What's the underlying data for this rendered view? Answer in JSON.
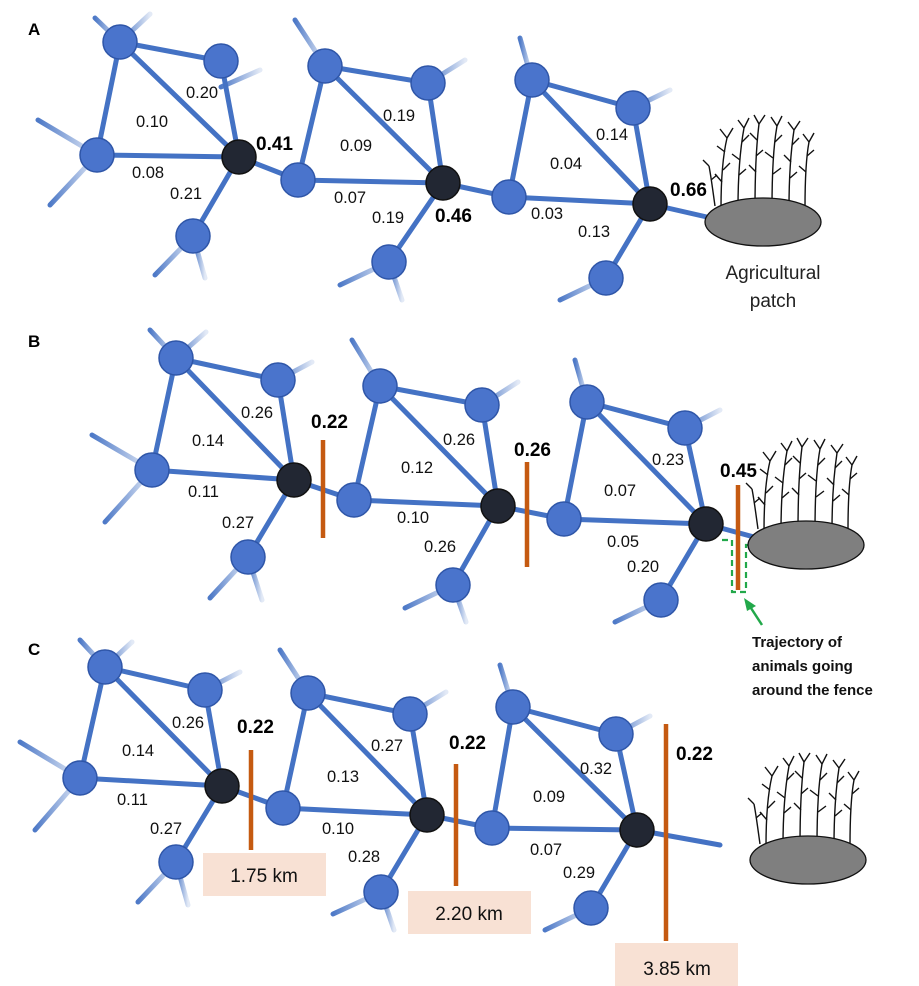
{
  "colors": {
    "edge": "#4472c4",
    "node_fill": "#4a74cc",
    "node_stroke": "#2f56a8",
    "hub_fill": "#222733",
    "fence": "#c55a11",
    "distance_box": "#f8e1d4",
    "trajectory": "#22a84a",
    "patch": "#7f7f7f"
  },
  "panels": [
    {
      "label": "A",
      "node_values": [
        "0.41",
        "0.46",
        "0.66"
      ],
      "edge_values": [
        "0.20",
        "0.10",
        "0.08",
        "0.21",
        "0.19",
        "0.09",
        "0.07",
        "0.19",
        "0.14",
        "0.04",
        "0.03",
        "0.13"
      ],
      "patch_label": [
        "Agricultural",
        "patch"
      ]
    },
    {
      "label": "B",
      "fence_values": [
        "0.22",
        "0.26",
        "0.45"
      ],
      "edge_values": [
        "0.26",
        "0.14",
        "0.11",
        "0.27",
        "0.26",
        "0.12",
        "0.10",
        "0.26",
        "0.23",
        "0.07",
        "0.05",
        "0.20"
      ],
      "annotation": [
        "Trajectory of",
        "animals going",
        "around the fence"
      ]
    },
    {
      "label": "C",
      "fence_values": [
        "0.22",
        "0.22",
        "0.22"
      ],
      "edge_values": [
        "0.26",
        "0.14",
        "0.11",
        "0.27",
        "0.27",
        "0.13",
        "0.10",
        "0.28",
        "0.32",
        "0.09",
        "0.07",
        "0.29"
      ],
      "distances": [
        "1.75 km",
        "2.20 km",
        "3.85 km"
      ]
    }
  ]
}
